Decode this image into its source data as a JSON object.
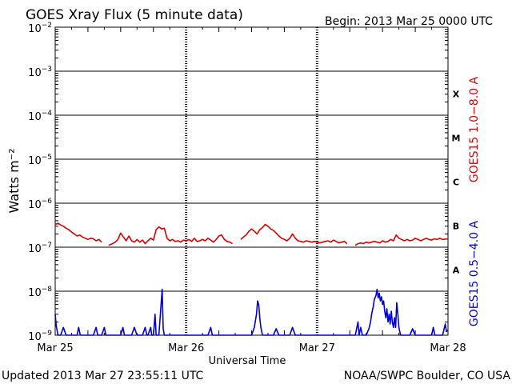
{
  "page": {
    "title": "GOES Xray Flux (5 minute data)",
    "begin_label": "Begin:  2013 Mar 25 0000 UTC",
    "updated": "Updated 2013 Mar 27 23:55:11 UTC",
    "credit": "NOAA/SWPC Boulder, CO USA"
  },
  "chart_data": {
    "type": "line",
    "title": "GOES Xray Flux (5 minute data)",
    "xlabel": "Universal Time",
    "ylabel": "Watts m⁻²",
    "yscale": "log",
    "ylim": [
      1e-09,
      0.01
    ],
    "xlim": [
      0,
      72
    ],
    "x_unit": "hours since 2013 Mar 25 0000 UTC",
    "x_ticks": [
      {
        "x": 0,
        "label": "Mar 25"
      },
      {
        "x": 24,
        "label": "Mar 26"
      },
      {
        "x": 48,
        "label": "Mar 27"
      },
      {
        "x": 72,
        "label": "Mar 28"
      }
    ],
    "y_ticks": [
      {
        "exp": -9,
        "base": "10",
        "sup": "−9"
      },
      {
        "exp": -8,
        "base": "10",
        "sup": "−8"
      },
      {
        "exp": -7,
        "base": "10",
        "sup": "−7"
      },
      {
        "exp": -6,
        "base": "10",
        "sup": "−6"
      },
      {
        "exp": -5,
        "base": "10",
        "sup": "−5"
      },
      {
        "exp": -4,
        "base": "10",
        "sup": "−4"
      },
      {
        "exp": -3,
        "base": "10",
        "sup": "−3"
      },
      {
        "exp": -2,
        "base": "10",
        "sup": "−2"
      }
    ],
    "flare_classes": [
      {
        "label": "A",
        "exp": -8
      },
      {
        "label": "B",
        "exp": -7
      },
      {
        "label": "C",
        "exp": -6
      },
      {
        "label": "M",
        "exp": -5
      },
      {
        "label": "X",
        "exp": -4
      }
    ],
    "grid": true,
    "series": [
      {
        "name": "GOES15 1.0−8.0 A",
        "color": "#dd0000",
        "points": [
          [
            0,
            3.3e-07
          ],
          [
            0.5,
            3.5e-07
          ],
          [
            1,
            3.2e-07
          ],
          [
            1.5,
            3e-07
          ],
          [
            2,
            2.7e-07
          ],
          [
            2.5,
            2.5e-07
          ],
          [
            3,
            2.2e-07
          ],
          [
            3.5,
            2e-07
          ],
          [
            4,
            1.8e-07
          ],
          [
            4.5,
            1.9e-07
          ],
          [
            5,
            1.7e-07
          ],
          [
            5.5,
            1.6e-07
          ],
          [
            6,
            1.5e-07
          ],
          [
            6.5,
            1.6e-07
          ],
          [
            7,
            1.55e-07
          ],
          [
            7.5,
            1.4e-07
          ],
          [
            8,
            1.5e-07
          ],
          [
            8.5,
            1.3e-07
          ],
          null,
          [
            9.8,
            1.1e-07
          ],
          [
            10.5,
            1.2e-07
          ],
          [
            11,
            1.3e-07
          ],
          [
            11.5,
            1.5e-07
          ],
          [
            12,
            2.1e-07
          ],
          [
            12.5,
            1.7e-07
          ],
          [
            13,
            1.4e-07
          ],
          [
            13.5,
            1.8e-07
          ],
          [
            14,
            1.4e-07
          ],
          [
            14.5,
            1.3e-07
          ],
          [
            15,
            1.5e-07
          ],
          [
            15.5,
            1.3e-07
          ],
          [
            16,
            1.45e-07
          ],
          [
            16.5,
            1.2e-07
          ],
          [
            17,
            1.4e-07
          ],
          [
            17.5,
            1.6e-07
          ],
          [
            18,
            1.45e-07
          ],
          [
            18.5,
            2.5e-07
          ],
          [
            19,
            2.9e-07
          ],
          [
            19.5,
            2.6e-07
          ],
          [
            20,
            2.7e-07
          ],
          [
            20.5,
            1.6e-07
          ],
          [
            21,
            1.4e-07
          ],
          [
            21.5,
            1.5e-07
          ],
          [
            22,
            1.35e-07
          ],
          [
            22.5,
            1.4e-07
          ],
          [
            23,
            1.3e-07
          ],
          [
            23.5,
            1.45e-07
          ],
          [
            24,
            1.4e-07
          ],
          [
            24.5,
            1.5e-07
          ],
          [
            25,
            1.35e-07
          ],
          [
            25.5,
            1.6e-07
          ],
          [
            26,
            1.35e-07
          ],
          [
            26.5,
            1.4e-07
          ],
          [
            27,
            1.5e-07
          ],
          [
            27.5,
            1.4e-07
          ],
          [
            28,
            1.6e-07
          ],
          [
            28.5,
            1.45e-07
          ],
          [
            29,
            1.3e-07
          ],
          [
            29.5,
            1.5e-07
          ],
          [
            30,
            1.8e-07
          ],
          [
            30.5,
            1.9e-07
          ],
          [
            31,
            1.5e-07
          ],
          [
            31.5,
            1.35e-07
          ],
          [
            32,
            1.3e-07
          ],
          [
            32.5,
            1.2e-07
          ],
          null,
          [
            34,
            1.5e-07
          ],
          [
            34.5,
            1.7e-07
          ],
          [
            35,
            1.9e-07
          ],
          [
            35.5,
            2.3e-07
          ],
          [
            36,
            2.6e-07
          ],
          [
            36.5,
            2.3e-07
          ],
          [
            37,
            2e-07
          ],
          [
            37.5,
            2.5e-07
          ],
          [
            38,
            2.8e-07
          ],
          [
            38.5,
            3.3e-07
          ],
          [
            39,
            3e-07
          ],
          [
            39.5,
            2.6e-07
          ],
          [
            40,
            2.4e-07
          ],
          [
            40.5,
            2.1e-07
          ],
          [
            41,
            1.8e-07
          ],
          [
            41.5,
            1.6e-07
          ],
          [
            42,
            1.5e-07
          ],
          [
            42.5,
            1.4e-07
          ],
          [
            43,
            1.6e-07
          ],
          [
            43.5,
            2e-07
          ],
          [
            44,
            1.6e-07
          ],
          [
            44.5,
            1.4e-07
          ],
          [
            45,
            1.35e-07
          ],
          [
            45.5,
            1.3e-07
          ],
          [
            46,
            1.4e-07
          ],
          [
            46.5,
            1.35e-07
          ],
          [
            47,
            1.3e-07
          ],
          [
            47.5,
            1.35e-07
          ],
          [
            48,
            1.3e-07
          ],
          [
            48.5,
            1.25e-07
          ],
          [
            49,
            1.3e-07
          ],
          [
            49.5,
            1.35e-07
          ],
          [
            50,
            1.4e-07
          ],
          [
            50.5,
            1.3e-07
          ],
          [
            51,
            1.45e-07
          ],
          [
            51.5,
            1.35e-07
          ],
          [
            52,
            1.25e-07
          ],
          [
            52.5,
            1.3e-07
          ],
          [
            53,
            1.35e-07
          ],
          [
            53.5,
            1.2e-07
          ],
          null,
          [
            55,
            1.1e-07
          ],
          [
            55.5,
            1.2e-07
          ],
          [
            56,
            1.25e-07
          ],
          [
            56.5,
            1.2e-07
          ],
          [
            57,
            1.3e-07
          ],
          [
            57.5,
            1.25e-07
          ],
          [
            58,
            1.3e-07
          ],
          [
            58.5,
            1.35e-07
          ],
          [
            59,
            1.3e-07
          ],
          [
            59.5,
            1.25e-07
          ],
          [
            60,
            1.4e-07
          ],
          [
            60.5,
            1.3e-07
          ],
          [
            61,
            1.35e-07
          ],
          [
            61.5,
            1.5e-07
          ],
          [
            62,
            1.4e-07
          ],
          [
            62.5,
            1.9e-07
          ],
          [
            63,
            1.6e-07
          ],
          [
            63.5,
            1.5e-07
          ],
          [
            64,
            1.4e-07
          ],
          [
            64.5,
            1.5e-07
          ],
          [
            65,
            1.4e-07
          ],
          [
            65.5,
            1.45e-07
          ],
          [
            66,
            1.6e-07
          ],
          [
            66.5,
            1.5e-07
          ],
          [
            67,
            1.4e-07
          ],
          [
            67.5,
            1.5e-07
          ],
          [
            68,
            1.6e-07
          ],
          [
            68.5,
            1.5e-07
          ],
          [
            69,
            1.45e-07
          ],
          [
            69.5,
            1.55e-07
          ],
          [
            70,
            1.5e-07
          ],
          [
            70.5,
            1.6e-07
          ],
          [
            71,
            1.5e-07
          ],
          [
            72,
            1.55e-07
          ]
        ]
      },
      {
        "name": "GOES15 0.5−4.0 A",
        "color": "#0000dd",
        "points": [
          [
            0,
            3e-09
          ],
          [
            0.2,
            1.6e-09
          ],
          [
            0.5,
            1e-09
          ],
          [
            1,
            1e-09
          ],
          [
            1.5,
            1.5e-09
          ],
          [
            2,
            1e-09
          ],
          [
            2.5,
            1e-09
          ],
          [
            3,
            1e-09
          ],
          [
            3.5,
            1e-09
          ],
          [
            4,
            1e-09
          ],
          [
            4.3,
            1.5e-09
          ],
          [
            4.6,
            1e-09
          ],
          [
            5,
            1e-09
          ],
          [
            6,
            1e-09
          ],
          [
            7,
            1e-09
          ],
          [
            7.5,
            1.5e-09
          ],
          [
            7.8,
            1e-09
          ],
          [
            8.5,
            1e-09
          ],
          [
            9,
            1.5e-09
          ],
          [
            9.3,
            1e-09
          ],
          [
            10,
            1e-09
          ],
          [
            11,
            1e-09
          ],
          [
            12,
            1e-09
          ],
          [
            12.4,
            1.5e-09
          ],
          [
            12.7,
            1e-09
          ],
          [
            13,
            1e-09
          ],
          [
            14,
            1e-09
          ],
          [
            14.5,
            1.5e-09
          ],
          [
            15,
            1e-09
          ],
          [
            16,
            1e-09
          ],
          [
            16.5,
            1.5e-09
          ],
          [
            16.8,
            1e-09
          ],
          [
            17,
            1e-09
          ],
          [
            17.5,
            1.5e-09
          ],
          [
            17.7,
            1e-09
          ],
          [
            18,
            1e-09
          ],
          [
            18.3,
            3e-09
          ],
          [
            18.5,
            1e-09
          ],
          [
            19,
            1e-09
          ],
          [
            19.6,
            1.1e-08
          ],
          [
            19.8,
            1.4e-09
          ],
          [
            20,
            1e-09
          ],
          [
            21,
            1e-09
          ],
          [
            22,
            1e-09
          ],
          [
            23,
            1e-09
          ],
          [
            24,
            1e-09
          ],
          [
            25,
            1e-09
          ],
          [
            26,
            1e-09
          ],
          [
            27,
            1e-09
          ],
          [
            28,
            1e-09
          ],
          [
            28.5,
            1.5e-09
          ],
          [
            28.8,
            1e-09
          ],
          [
            29,
            1e-09
          ],
          [
            30,
            1e-09
          ],
          [
            31,
            1e-09
          ],
          [
            32,
            1e-09
          ],
          [
            33,
            1e-09
          ],
          [
            34,
            1e-09
          ],
          [
            35,
            1e-09
          ],
          [
            36,
            1e-09
          ],
          [
            36.5,
            1.5e-09
          ],
          [
            36.9,
            3e-09
          ],
          [
            37.1,
            6e-09
          ],
          [
            37.3,
            5e-09
          ],
          [
            37.5,
            2.5e-09
          ],
          [
            37.7,
            1.5e-09
          ],
          [
            38,
            1e-09
          ],
          [
            39,
            1e-09
          ],
          [
            40,
            1e-09
          ],
          [
            40.5,
            1.4e-09
          ],
          [
            41,
            1e-09
          ],
          [
            42,
            1e-09
          ],
          [
            43,
            1e-09
          ],
          [
            43.5,
            1.5e-09
          ],
          [
            44,
            1e-09
          ],
          [
            45,
            1e-09
          ],
          [
            46,
            1e-09
          ],
          [
            47,
            1e-09
          ],
          [
            48,
            1e-09
          ],
          [
            49,
            1e-09
          ],
          [
            50,
            1e-09
          ],
          [
            51,
            1e-09
          ],
          [
            52,
            1e-09
          ],
          [
            53,
            1e-09
          ],
          [
            54,
            1e-09
          ],
          [
            55,
            1e-09
          ],
          [
            55.5,
            2e-09
          ],
          [
            55.7,
            1e-09
          ],
          [
            56,
            1.5e-09
          ],
          [
            56.3,
            1e-09
          ],
          [
            57,
            1e-09
          ],
          [
            57.5,
            1.4e-09
          ],
          [
            57.8,
            2e-09
          ],
          [
            58,
            3e-09
          ],
          [
            58.3,
            4.5e-09
          ],
          [
            58.5,
            6.5e-09
          ],
          [
            58.8,
            8e-09
          ],
          [
            59,
            1.1e-08
          ],
          [
            59.2,
            7e-09
          ],
          [
            59.4,
            9e-09
          ],
          [
            59.6,
            6e-09
          ],
          [
            59.8,
            7.5e-09
          ],
          [
            60,
            5e-09
          ],
          [
            60.2,
            6e-09
          ],
          [
            60.4,
            3.5e-09
          ],
          [
            60.6,
            2.5e-09
          ],
          [
            60.8,
            4e-09
          ],
          [
            61,
            2e-09
          ],
          [
            61.2,
            3e-09
          ],
          [
            61.4,
            1.8e-09
          ],
          [
            61.6,
            3.5e-09
          ],
          [
            61.8,
            2e-09
          ],
          [
            62,
            1.5e-09
          ],
          [
            62.2,
            2.5e-09
          ],
          [
            62.4,
            1.5e-09
          ],
          [
            62.6,
            5.5e-09
          ],
          [
            62.8,
            3e-09
          ],
          [
            63,
            1.5e-09
          ],
          [
            63.3,
            1e-09
          ],
          [
            64,
            1e-09
          ],
          [
            65,
            1e-09
          ],
          [
            65.5,
            1.4e-09
          ],
          [
            66,
            1e-09
          ],
          [
            67,
            1e-09
          ],
          [
            68,
            1e-09
          ],
          [
            69,
            1e-09
          ],
          [
            69.3,
            1.5e-09
          ],
          [
            69.6,
            1e-09
          ],
          [
            70,
            1e-09
          ],
          [
            71,
            1e-09
          ],
          [
            71.5,
            1.8e-09
          ],
          [
            71.7,
            1.2e-09
          ],
          [
            72,
            1.3e-09
          ]
        ]
      }
    ]
  }
}
